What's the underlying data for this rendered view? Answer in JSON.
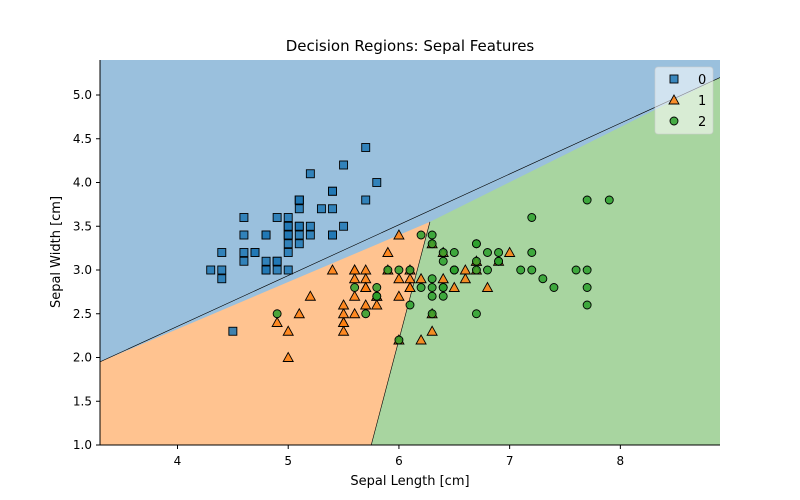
{
  "chart_data": {
    "type": "scatter",
    "title": "Decision Regions: Sepal Features",
    "xlabel": "Sepal Length [cm]",
    "ylabel": "Sepal Width [cm]",
    "xlim": [
      3.3,
      8.9
    ],
    "ylim": [
      1.0,
      5.4
    ],
    "xticks": [
      4,
      5,
      6,
      7,
      8
    ],
    "yticks": [
      1.0,
      1.5,
      2.0,
      2.5,
      3.0,
      3.5,
      4.0,
      4.5,
      5.0
    ],
    "legend_position": "top-right",
    "region_boundaries": {
      "class0_vs_others": [
        [
          3.3,
          1.95
        ],
        [
          8.9,
          5.2
        ]
      ],
      "class1_vs_class2": [
        [
          6.28,
          3.55
        ],
        [
          5.75,
          1.0
        ]
      ]
    },
    "region_colors": {
      "0": "#9ac0dd",
      "1": "#ffc390",
      "2": "#a8d5a0"
    },
    "series": [
      {
        "name": "0",
        "marker": "square",
        "color": "#1f77b4",
        "points": [
          [
            5.1,
            3.5
          ],
          [
            4.9,
            3.0
          ],
          [
            4.7,
            3.2
          ],
          [
            4.6,
            3.1
          ],
          [
            5.0,
            3.6
          ],
          [
            5.4,
            3.9
          ],
          [
            4.6,
            3.4
          ],
          [
            5.0,
            3.4
          ],
          [
            4.4,
            2.9
          ],
          [
            4.9,
            3.1
          ],
          [
            5.4,
            3.7
          ],
          [
            4.8,
            3.4
          ],
          [
            4.8,
            3.0
          ],
          [
            4.3,
            3.0
          ],
          [
            5.8,
            4.0
          ],
          [
            5.7,
            4.4
          ],
          [
            5.4,
            3.9
          ],
          [
            5.1,
            3.5
          ],
          [
            5.7,
            3.8
          ],
          [
            5.1,
            3.8
          ],
          [
            5.4,
            3.4
          ],
          [
            5.1,
            3.7
          ],
          [
            4.6,
            3.6
          ],
          [
            5.1,
            3.3
          ],
          [
            4.8,
            3.4
          ],
          [
            5.0,
            3.0
          ],
          [
            5.0,
            3.4
          ],
          [
            5.2,
            3.5
          ],
          [
            5.2,
            3.4
          ],
          [
            4.7,
            3.2
          ],
          [
            4.8,
            3.1
          ],
          [
            5.4,
            3.4
          ],
          [
            5.2,
            4.1
          ],
          [
            5.5,
            4.2
          ],
          [
            4.9,
            3.1
          ],
          [
            5.0,
            3.2
          ],
          [
            5.5,
            3.5
          ],
          [
            4.9,
            3.6
          ],
          [
            4.4,
            3.0
          ],
          [
            5.1,
            3.4
          ],
          [
            5.0,
            3.5
          ],
          [
            4.5,
            2.3
          ],
          [
            4.4,
            3.2
          ],
          [
            5.0,
            3.5
          ],
          [
            5.1,
            3.8
          ],
          [
            4.8,
            3.0
          ],
          [
            5.1,
            3.8
          ],
          [
            4.6,
            3.2
          ],
          [
            5.3,
            3.7
          ],
          [
            5.0,
            3.3
          ]
        ]
      },
      {
        "name": "1",
        "marker": "triangle",
        "color": "#ff7f0e",
        "points": [
          [
            7.0,
            3.2
          ],
          [
            6.4,
            3.2
          ],
          [
            6.9,
            3.1
          ],
          [
            5.5,
            2.3
          ],
          [
            6.5,
            2.8
          ],
          [
            5.7,
            2.8
          ],
          [
            6.3,
            3.3
          ],
          [
            4.9,
            2.4
          ],
          [
            6.6,
            2.9
          ],
          [
            5.2,
            2.7
          ],
          [
            5.0,
            2.0
          ],
          [
            5.9,
            3.0
          ],
          [
            6.0,
            2.2
          ],
          [
            6.1,
            2.9
          ],
          [
            5.6,
            2.9
          ],
          [
            6.7,
            3.1
          ],
          [
            5.6,
            3.0
          ],
          [
            5.8,
            2.7
          ],
          [
            6.2,
            2.2
          ],
          [
            5.6,
            2.5
          ],
          [
            5.9,
            3.2
          ],
          [
            6.1,
            2.8
          ],
          [
            6.3,
            2.5
          ],
          [
            6.1,
            2.8
          ],
          [
            6.4,
            2.9
          ],
          [
            6.6,
            3.0
          ],
          [
            6.8,
            2.8
          ],
          [
            6.7,
            3.0
          ],
          [
            6.0,
            2.9
          ],
          [
            5.7,
            2.6
          ],
          [
            5.5,
            2.4
          ],
          [
            5.5,
            2.4
          ],
          [
            5.8,
            2.7
          ],
          [
            6.0,
            2.7
          ],
          [
            5.4,
            3.0
          ],
          [
            6.0,
            3.4
          ],
          [
            6.7,
            3.1
          ],
          [
            6.3,
            2.3
          ],
          [
            5.6,
            3.0
          ],
          [
            5.5,
            2.5
          ],
          [
            5.5,
            2.6
          ],
          [
            6.1,
            3.0
          ],
          [
            5.8,
            2.6
          ],
          [
            5.0,
            2.3
          ],
          [
            5.6,
            2.7
          ],
          [
            5.7,
            3.0
          ],
          [
            5.7,
            2.9
          ],
          [
            6.2,
            2.9
          ],
          [
            5.1,
            2.5
          ],
          [
            5.7,
            2.8
          ]
        ]
      },
      {
        "name": "2",
        "marker": "circle",
        "color": "#2ca02c",
        "points": [
          [
            6.3,
            3.3
          ],
          [
            5.8,
            2.7
          ],
          [
            7.1,
            3.0
          ],
          [
            6.3,
            2.9
          ],
          [
            6.5,
            3.0
          ],
          [
            7.6,
            3.0
          ],
          [
            4.9,
            2.5
          ],
          [
            7.3,
            2.9
          ],
          [
            6.7,
            2.5
          ],
          [
            7.2,
            3.6
          ],
          [
            6.5,
            3.2
          ],
          [
            6.4,
            2.7
          ],
          [
            6.8,
            3.0
          ],
          [
            5.7,
            2.5
          ],
          [
            5.8,
            2.8
          ],
          [
            6.4,
            3.2
          ],
          [
            6.5,
            3.0
          ],
          [
            7.7,
            3.8
          ],
          [
            7.7,
            2.6
          ],
          [
            6.0,
            2.2
          ],
          [
            6.9,
            3.2
          ],
          [
            5.6,
            2.8
          ],
          [
            7.7,
            2.8
          ],
          [
            6.3,
            2.7
          ],
          [
            6.7,
            3.3
          ],
          [
            7.2,
            3.2
          ],
          [
            6.2,
            2.8
          ],
          [
            6.1,
            3.0
          ],
          [
            6.4,
            2.8
          ],
          [
            7.2,
            3.0
          ],
          [
            7.4,
            2.8
          ],
          [
            7.9,
            3.8
          ],
          [
            6.4,
            2.8
          ],
          [
            6.3,
            2.8
          ],
          [
            6.1,
            2.6
          ],
          [
            7.7,
            3.0
          ],
          [
            6.3,
            3.4
          ],
          [
            6.4,
            3.1
          ],
          [
            6.0,
            3.0
          ],
          [
            6.9,
            3.1
          ],
          [
            6.7,
            3.1
          ],
          [
            6.9,
            3.1
          ],
          [
            5.8,
            2.7
          ],
          [
            6.8,
            3.2
          ],
          [
            6.7,
            3.3
          ],
          [
            6.7,
            3.0
          ],
          [
            6.3,
            2.5
          ],
          [
            6.5,
            3.0
          ],
          [
            6.2,
            3.4
          ],
          [
            5.9,
            3.0
          ]
        ]
      }
    ]
  }
}
